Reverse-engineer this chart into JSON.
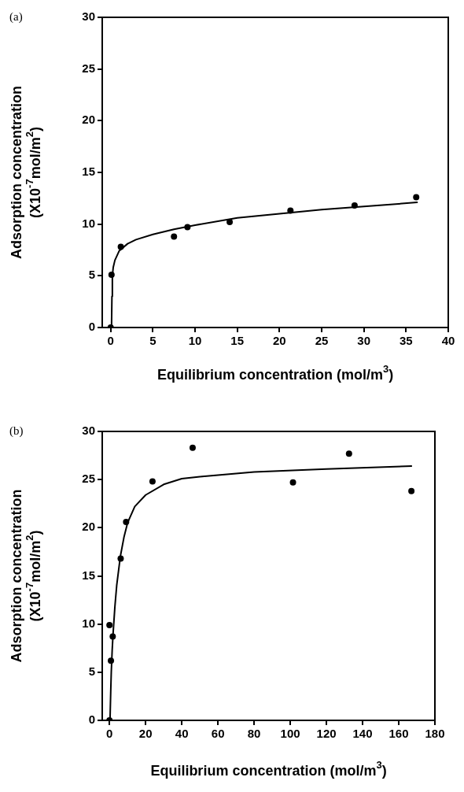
{
  "chart_data": [
    {
      "type": "scatter",
      "title": "(a)",
      "xlabel": "Equilibrium concentration (mol/m$^{3}$)",
      "ylabel": "Adsorption concentration\n(X10$^{-7}$mol/m$^{2}$)",
      "xlim": [
        -1,
        40
      ],
      "ylim": [
        0,
        30
      ],
      "xticks": [
        0,
        5,
        10,
        15,
        20,
        25,
        30,
        35,
        40
      ],
      "yticks": [
        0,
        5,
        10,
        15,
        20,
        25,
        30
      ],
      "grid": false,
      "legend": false,
      "marker": "circle",
      "series": [
        {
          "type": "scatter",
          "color": "#000000",
          "x": [
            0,
            0.1,
            1.2,
            7.5,
            9.1,
            14.1,
            21.3,
            28.9,
            36.2
          ],
          "values": [
            0,
            5.1,
            7.8,
            8.8,
            9.7,
            10.2,
            11.3,
            11.8,
            12.6
          ]
        },
        {
          "type": "line",
          "marker": "none",
          "line_style": "solid",
          "color": "#000000",
          "x": [
            0.1,
            0.15,
            0.2,
            0.3,
            0.5,
            1,
            2,
            3,
            5,
            7.5,
            10,
            15,
            20,
            25,
            30,
            36.3
          ],
          "values": [
            0,
            3,
            5,
            5.8,
            6.5,
            7.4,
            8.1,
            8.5,
            9,
            9.5,
            9.9,
            10.6,
            11,
            11.4,
            11.7,
            12.1
          ]
        }
      ]
    },
    {
      "type": "scatter",
      "title": "(b)",
      "xlabel": "Equilibrium concentration (mol/m$^{3}$)",
      "ylabel": "Adsorption concentration\n(X10$^{-7}$mol/m$^{2}$)",
      "xlim": [
        -4,
        180
      ],
      "ylim": [
        0,
        30
      ],
      "xticks": [
        0,
        20,
        40,
        60,
        80,
        100,
        120,
        140,
        160,
        180
      ],
      "yticks": [
        0,
        5,
        10,
        15,
        20,
        25,
        30
      ],
      "grid": false,
      "legend": false,
      "marker": "circle",
      "series": [
        {
          "type": "scatter",
          "color": "#000000",
          "x": [
            0,
            0,
            0.8,
            1.8,
            6.2,
            9.2,
            23.8,
            46,
            101.5,
            132.5,
            167
          ],
          "values": [
            0,
            9.9,
            6.2,
            8.7,
            16.8,
            20.6,
            24.8,
            28.3,
            24.7,
            27.7,
            23.8
          ]
        },
        {
          "type": "line",
          "marker": "none",
          "line_style": "solid",
          "color": "#000000",
          "x": [
            0.3,
            0.7,
            1,
            1.5,
            2,
            3,
            4,
            6,
            8,
            10,
            14,
            20,
            30,
            40,
            50,
            80,
            120,
            167
          ],
          "values": [
            0,
            3,
            5,
            7.3,
            9,
            11.8,
            14,
            17,
            19,
            20.5,
            22.2,
            23.4,
            24.5,
            25.1,
            25.3,
            25.8,
            26.1,
            26.4
          ]
        }
      ]
    }
  ]
}
